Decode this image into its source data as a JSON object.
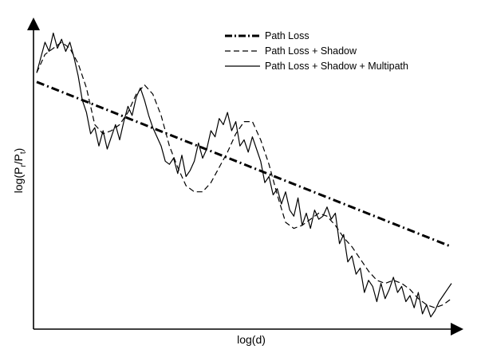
{
  "chart_data": {
    "type": "line",
    "title": "",
    "xlabel": "log(d)",
    "ylabel_base": "log(P",
    "ylabel_sub1": "r",
    "ylabel_mid": "/P",
    "ylabel_sub2": "t",
    "ylabel_end": ")",
    "xlim": [
      0,
      100
    ],
    "ylim": [
      0,
      100
    ],
    "grid": false,
    "legend_position": "top-right",
    "series": [
      {
        "name": "Path Loss",
        "style": "dashdot",
        "color": "#000000",
        "x": [
          0,
          100
        ],
        "y": [
          81,
          27
        ]
      },
      {
        "name": "Path Loss + Shadow",
        "style": "dashed",
        "color": "#000000",
        "x": [
          0,
          2,
          4,
          6,
          8,
          10,
          12,
          14,
          16,
          18,
          20,
          22,
          24,
          26,
          28,
          30,
          32,
          34,
          36,
          38,
          40,
          42,
          44,
          46,
          48,
          50,
          52,
          54,
          56,
          58,
          60,
          62,
          64,
          66,
          68,
          70,
          72,
          74,
          76,
          78,
          80,
          82,
          84,
          86,
          88,
          90,
          92,
          94,
          96,
          98,
          100
        ],
        "y": [
          84,
          90,
          92,
          94,
          92,
          87,
          79,
          67,
          64,
          65,
          67,
          71,
          77,
          80,
          77,
          70,
          60,
          53,
          47,
          45,
          45,
          48,
          53,
          58,
          64,
          68,
          68,
          62,
          54,
          44,
          35,
          33,
          34,
          36,
          38,
          37,
          34,
          30,
          27,
          23,
          19,
          16,
          15,
          16,
          15,
          13,
          10,
          8,
          7,
          8,
          10
        ]
      },
      {
        "name": "Path Loss + Shadow + Multipath",
        "style": "solid",
        "color": "#000000",
        "x": [
          0,
          1,
          2,
          3,
          4,
          5,
          6,
          7,
          8,
          9,
          10,
          11,
          12,
          13,
          14,
          15,
          16,
          17,
          18,
          19,
          20,
          21,
          22,
          23,
          24,
          25,
          26,
          27,
          28,
          29,
          30,
          31,
          32,
          33,
          34,
          35,
          36,
          37,
          38,
          39,
          40,
          41,
          42,
          43,
          44,
          45,
          46,
          47,
          48,
          49,
          50,
          51,
          52,
          53,
          54,
          55,
          56,
          57,
          58,
          59,
          60,
          61,
          62,
          63,
          64,
          65,
          66,
          67,
          68,
          69,
          70,
          71,
          72,
          73,
          74,
          75,
          76,
          77,
          78,
          79,
          80,
          81,
          82,
          83,
          84,
          85,
          86,
          87,
          88,
          89,
          90,
          91,
          92,
          93,
          94,
          95,
          96,
          97,
          98,
          99,
          100
        ],
        "y": [
          84,
          89,
          94,
          91,
          97,
          92,
          95,
          91,
          94,
          89,
          83,
          75,
          71,
          64,
          66,
          60,
          65,
          59,
          63,
          67,
          62,
          68,
          73,
          70,
          76,
          79,
          75,
          70,
          66,
          63,
          60,
          55,
          54,
          56,
          51,
          57,
          50,
          52,
          55,
          61,
          56,
          59,
          65,
          63,
          69,
          67,
          71,
          65,
          68,
          60,
          62,
          58,
          63,
          59,
          55,
          48,
          50,
          44,
          46,
          41,
          45,
          39,
          37,
          43,
          34,
          38,
          33,
          39,
          36,
          37,
          40,
          36,
          38,
          28,
          31,
          22,
          24,
          18,
          20,
          12,
          16,
          14,
          9,
          15,
          10,
          13,
          17,
          12,
          14,
          9,
          11,
          7,
          12,
          5,
          8,
          4,
          6,
          9,
          11,
          13,
          15
        ]
      }
    ]
  }
}
